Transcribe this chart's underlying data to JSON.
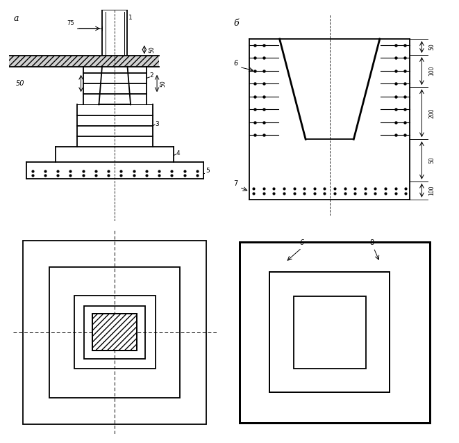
{
  "bg_color": "#ffffff",
  "label_a": "а",
  "label_b": "б",
  "lw_main": 1.3,
  "lw_thin": 0.7,
  "lw_thick": 2.0
}
